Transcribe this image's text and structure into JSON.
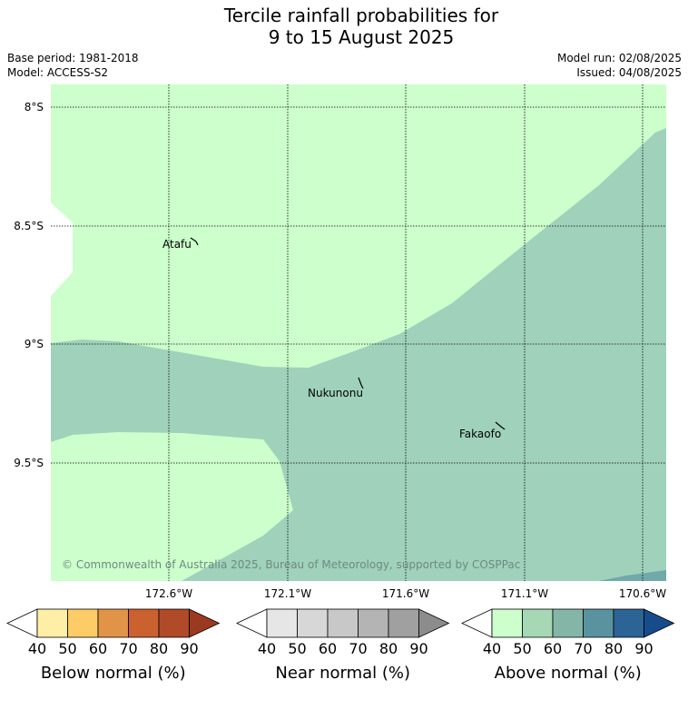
{
  "header": {
    "title_line1": "Tercile rainfall probabilities for",
    "title_line2": "9 to 15 August 2025",
    "base_period": "Base period: 1981-2018",
    "model": "Model: ACCESS-S2",
    "model_run": "Model run: 02/08/2025",
    "issued": "Issued: 04/08/2025"
  },
  "map": {
    "lat_labels": [
      "8°S",
      "8.5°S",
      "9°S",
      "9.5°S"
    ],
    "lon_labels": [
      "172.6°W",
      "172.1°W",
      "171.6°W",
      "171.1°W",
      "170.6°W"
    ],
    "places": [
      "Atafu",
      "Nukunonu",
      "Fakaofo"
    ],
    "copyright": "© Commonwealth of Australia 2025, Bureau of Meteorology, supported by COSPPac",
    "colors": {
      "above_40_50": "#ccffcc",
      "above_50_60": "#9fd1bb",
      "above_60_70": "#6fa9a9"
    }
  },
  "colorbars": [
    {
      "title": "Below normal (%)",
      "ticks": [
        "40",
        "50",
        "60",
        "70",
        "80",
        "90"
      ],
      "colors": [
        "#ffffff",
        "#ffeea6",
        "#fdcc66",
        "#e19447",
        "#cc6130",
        "#b04a28",
        "#9c3a20"
      ]
    },
    {
      "title": "Near normal (%)",
      "ticks": [
        "40",
        "50",
        "60",
        "70",
        "80",
        "90"
      ],
      "colors": [
        "#ffffff",
        "#e6e6e6",
        "#d7d7d7",
        "#c8c8c8",
        "#b4b4b4",
        "#a0a0a0",
        "#8c8c8c"
      ]
    },
    {
      "title": "Above normal (%)",
      "ticks": [
        "40",
        "50",
        "60",
        "70",
        "80",
        "90"
      ],
      "colors": [
        "#ffffff",
        "#ccffcc",
        "#a6d8b6",
        "#84b6a8",
        "#5a93a0",
        "#2c6496",
        "#174c8c"
      ]
    }
  ]
}
